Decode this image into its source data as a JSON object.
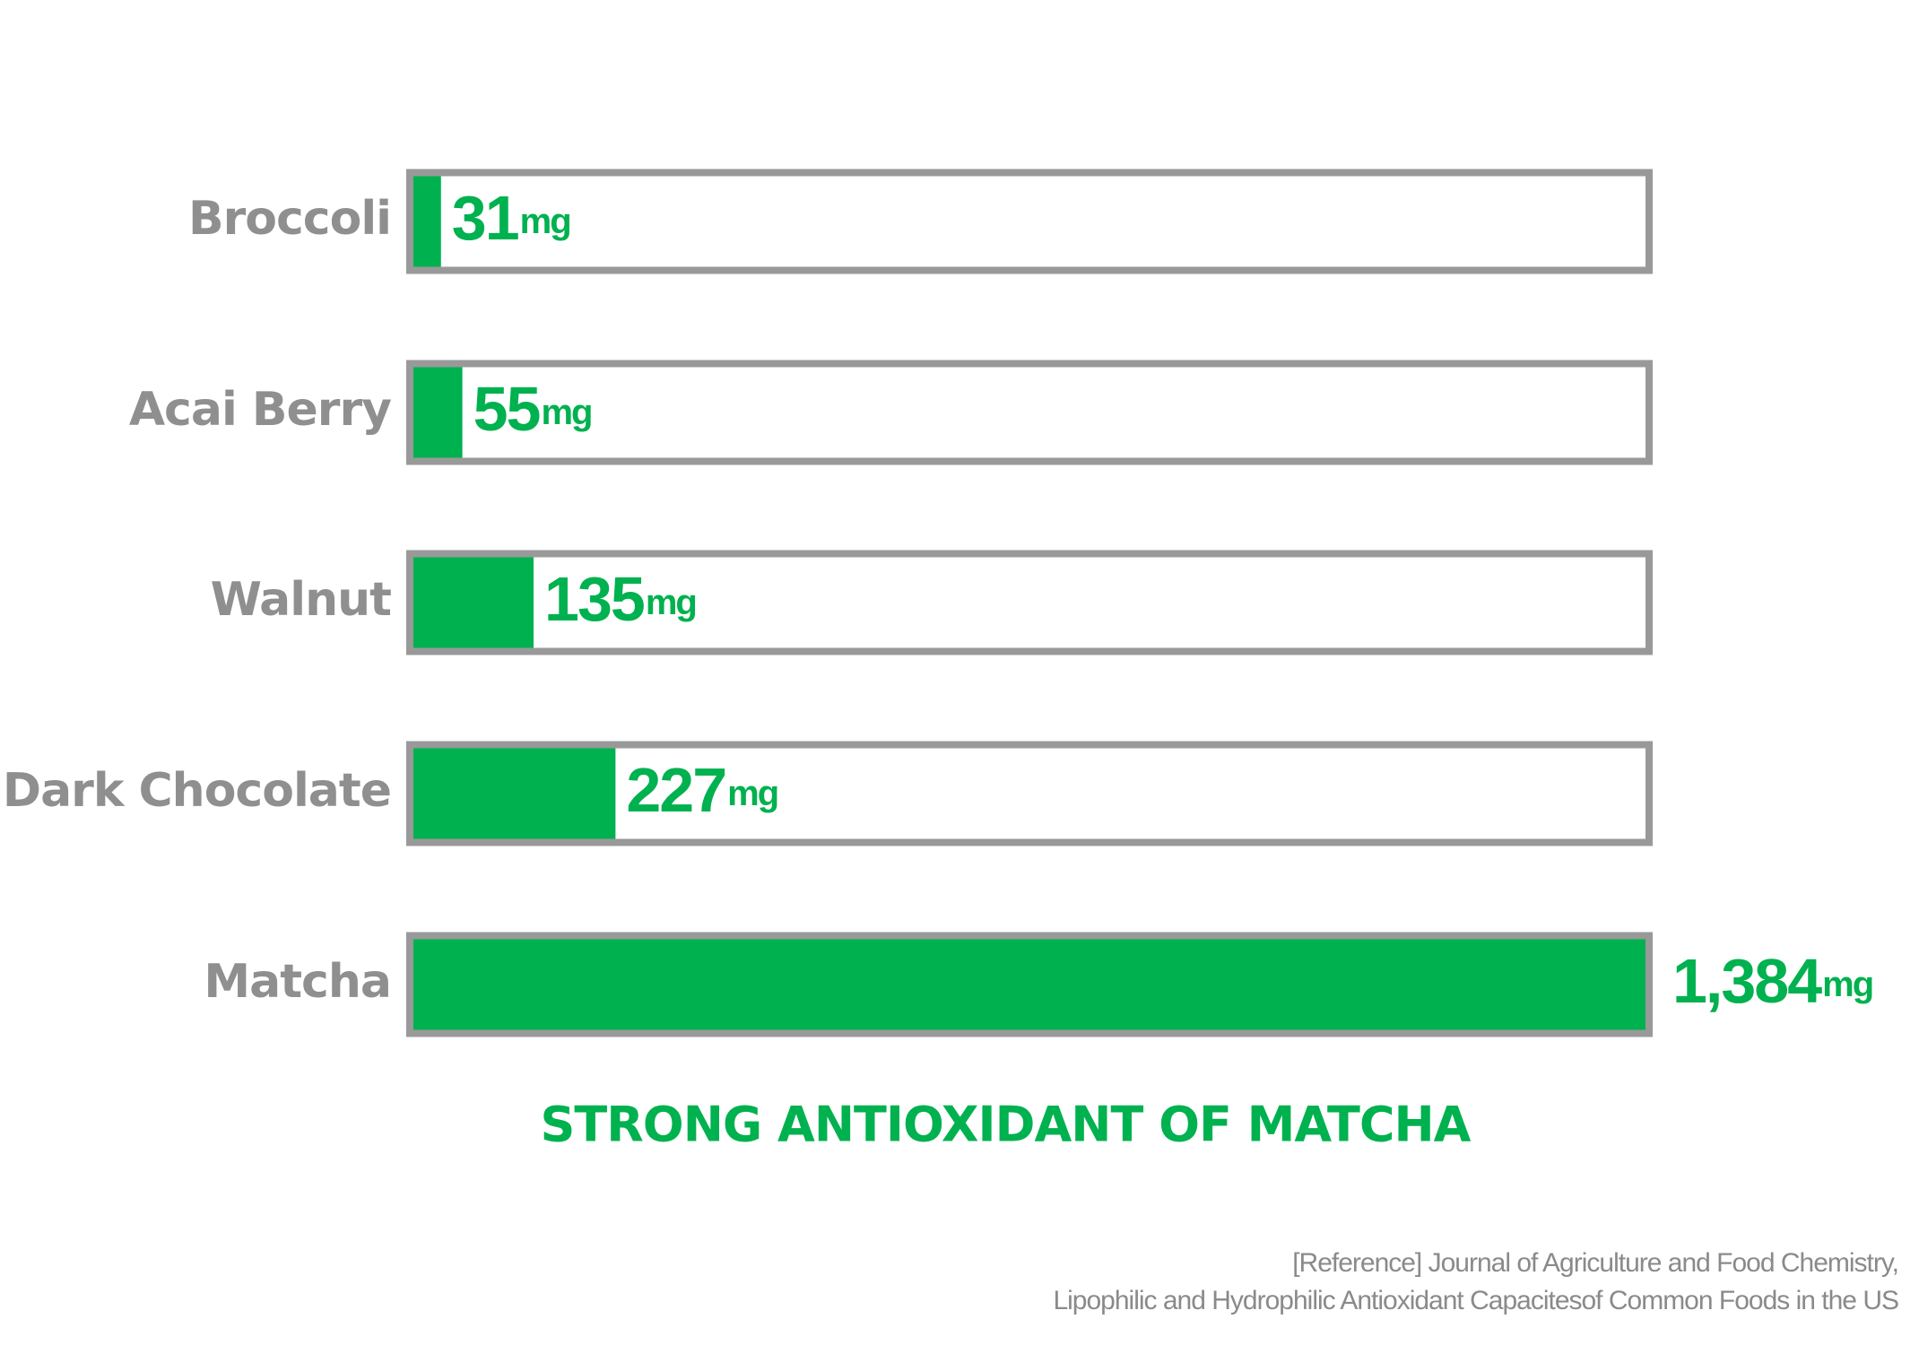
{
  "chart_data": {
    "type": "bar",
    "title": "STRONG ANTIOXIDANT OF MATCHA",
    "categories": [
      "Broccoli",
      "Acai Berry",
      "Walnut",
      "Dark Chocolate",
      "Matcha"
    ],
    "values": [
      31,
      55,
      135,
      227,
      1384
    ],
    "value_labels": [
      "31",
      "55",
      "135",
      "227",
      "1,384"
    ],
    "unit": "mg",
    "color": "#00b14f",
    "reference": [
      "[Reference]  Journal of Agriculture and Food Chemistry,",
      "Lipophilic and Hydrophilic Antioxidant Capacitesof Common Foods in the US"
    ]
  }
}
